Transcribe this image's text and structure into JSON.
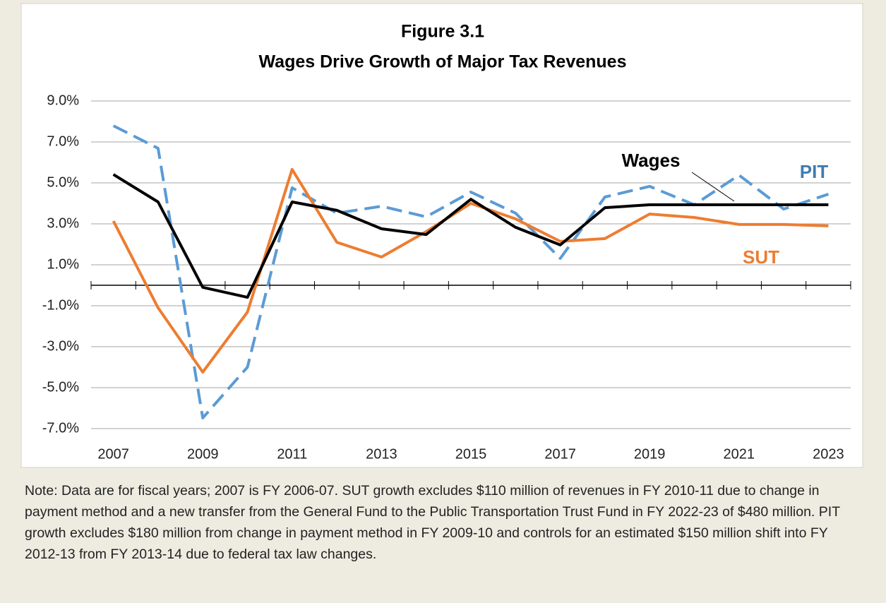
{
  "chart_data": {
    "type": "line",
    "title": "Figure 3.1",
    "subtitle": "Wages Drive Growth of Major Tax Revenues",
    "categories": [
      2007,
      null,
      2009,
      null,
      2011,
      null,
      2013,
      null,
      2015,
      null,
      2017,
      null,
      2019,
      null,
      2021,
      null,
      2023
    ],
    "ylim": [
      -7,
      9
    ],
    "yticks": [
      {
        "value": 9,
        "label": "9.0%"
      },
      {
        "value": 7,
        "label": "7.0%"
      },
      {
        "value": 5,
        "label": "5.0%"
      },
      {
        "value": 3,
        "label": "3.0%"
      },
      {
        "value": 1,
        "label": "1.0%"
      },
      {
        "value": -1,
        "label": "-1.0%"
      },
      {
        "value": -3,
        "label": "-3.0%"
      },
      {
        "value": -5,
        "label": "-5.0%"
      },
      {
        "value": -7,
        "label": "-7.0%"
      }
    ],
    "grid": true,
    "series": [
      {
        "name": "Wages",
        "color": "#000000",
        "dash": false,
        "values": [
          5.41,
          4.07,
          -0.1,
          -0.59,
          4.07,
          3.66,
          2.76,
          2.48,
          4.2,
          2.83,
          1.97,
          3.79,
          3.93,
          3.93,
          3.93,
          3.93,
          3.93
        ]
      },
      {
        "name": "PIT",
        "color": "#5b9bd5",
        "dash": true,
        "values": [
          7.79,
          6.69,
          -6.48,
          -4.0,
          4.76,
          3.52,
          3.86,
          3.34,
          4.55,
          3.52,
          1.31,
          4.31,
          4.83,
          3.93,
          5.38,
          3.72,
          4.45
        ]
      },
      {
        "name": "SUT",
        "color": "#ed7d31",
        "dash": false,
        "values": [
          3.14,
          -1.1,
          -4.24,
          -1.31,
          5.66,
          2.1,
          1.38,
          2.62,
          4.0,
          3.24,
          2.14,
          2.28,
          3.48,
          3.31,
          2.97,
          2.97,
          2.9
        ]
      }
    ]
  },
  "note": "Note: Data are for fiscal years; 2007 is FY 2006-07. SUT growth excludes $110 million of revenues in FY 2010-11 due to change in payment method and a new transfer from the General Fund to the Public Transportation Trust Fund in FY 2022-23 of $480 million. PIT growth excludes $180 million from change in payment method in FY 2009-10 and controls for an estimated $150 million shift into FY 2012-13 from FY 2013-14 due to federal tax law changes."
}
